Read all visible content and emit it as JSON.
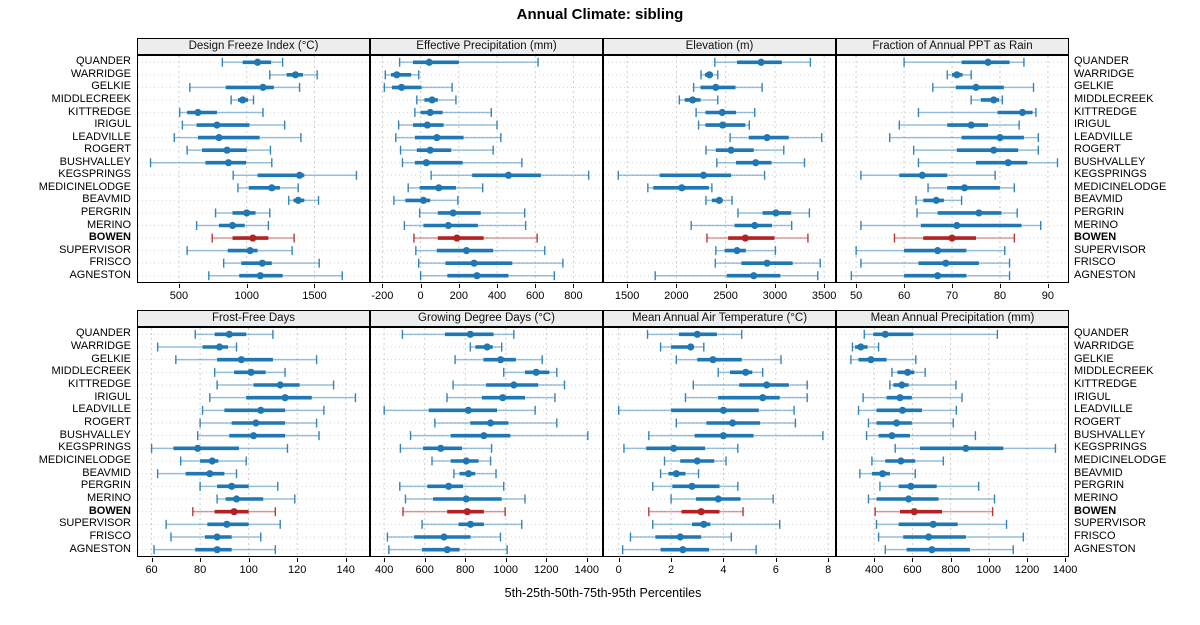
{
  "title": "Annual Climate: sibling",
  "caption": "5th-25th-50th-75th-95th Percentiles",
  "highlight_station": "BOWEN",
  "colors": {
    "series_blue": "#1f77b4",
    "highlight_red": "#b22222",
    "strip_bg": "#ededed",
    "panel_border": "#000000",
    "grid_line": "#cdcdcd",
    "row_guide": "#d6d6d6"
  },
  "stations": [
    "QUANDER",
    "WARRIDGE",
    "GELKIE",
    "MIDDLECREEK",
    "KITTREDGE",
    "IRIGUL",
    "LEADVILLE",
    "ROGERT",
    "BUSHVALLEY",
    "KEGSPRINGS",
    "MEDICINELODGE",
    "BEAVMID",
    "PERGRIN",
    "MERINO",
    "BOWEN",
    "SUPERVISOR",
    "FRISCO",
    "AGNESTON"
  ],
  "chart_data": {
    "type": "dot-whisker-trellis",
    "percentiles": [
      5,
      25,
      50,
      75,
      95
    ],
    "layout": {
      "rows": 2,
      "cols": 4,
      "grid": "dotted",
      "highlight": "BOWEN shown in red and bold"
    },
    "panels": [
      {
        "title": "Design Freeze Index (°C)",
        "ticks": [
          500,
          1000,
          1500
        ],
        "xlim": [
          190,
          1910
        ],
        "values": [
          [
            820,
            970,
            1080,
            1180,
            1265
          ],
          [
            1170,
            1295,
            1360,
            1415,
            1520
          ],
          [
            580,
            845,
            1120,
            1200,
            1390
          ],
          [
            885,
            935,
            970,
            1010,
            1050
          ],
          [
            505,
            560,
            640,
            780,
            1120
          ],
          [
            525,
            630,
            780,
            1020,
            1280
          ],
          [
            465,
            640,
            795,
            1095,
            1400
          ],
          [
            560,
            670,
            855,
            1000,
            1175
          ],
          [
            290,
            695,
            865,
            995,
            1185
          ],
          [
            900,
            1080,
            1390,
            1425,
            1810
          ],
          [
            935,
            1015,
            1185,
            1245,
            1380
          ],
          [
            1310,
            1345,
            1380,
            1425,
            1530
          ],
          [
            770,
            895,
            1000,
            1065,
            1170
          ],
          [
            630,
            795,
            895,
            985,
            1160
          ],
          [
            745,
            895,
            1045,
            1160,
            1350
          ],
          [
            560,
            860,
            1025,
            1080,
            1335
          ],
          [
            830,
            960,
            1115,
            1185,
            1535
          ],
          [
            720,
            945,
            1100,
            1265,
            1705
          ]
        ]
      },
      {
        "title": "Effective Precipitation (mm)",
        "ticks": [
          -200,
          0,
          200,
          400,
          600,
          800
        ],
        "xlim": [
          -265,
          955
        ],
        "values": [
          [
            -110,
            -40,
            45,
            200,
            615
          ],
          [
            -185,
            -155,
            -125,
            -50,
            -10
          ],
          [
            -190,
            -150,
            -100,
            5,
            165
          ],
          [
            -20,
            20,
            60,
            90,
            185
          ],
          [
            -30,
            0,
            50,
            115,
            370
          ],
          [
            -115,
            -40,
            35,
            120,
            400
          ],
          [
            -130,
            -30,
            85,
            225,
            420
          ],
          [
            -105,
            -20,
            50,
            160,
            380
          ],
          [
            -95,
            -30,
            30,
            220,
            530
          ],
          [
            55,
            270,
            460,
            630,
            880
          ],
          [
            -65,
            -5,
            95,
            185,
            325
          ],
          [
            -140,
            -80,
            15,
            50,
            195
          ],
          [
            -5,
            90,
            170,
            315,
            545
          ],
          [
            -85,
            15,
            145,
            300,
            550
          ],
          [
            -35,
            90,
            190,
            330,
            610
          ],
          [
            -25,
            85,
            240,
            380,
            650
          ],
          [
            -10,
            130,
            280,
            480,
            745
          ],
          [
            0,
            140,
            295,
            460,
            700
          ]
        ]
      },
      {
        "title": "Elevation (m)",
        "ticks": [
          1500,
          2000,
          2500,
          3000,
          3500
        ],
        "xlim": [
          1255,
          3620
        ],
        "values": [
          [
            2390,
            2615,
            2860,
            3070,
            3360
          ],
          [
            2250,
            2290,
            2335,
            2370,
            2420
          ],
          [
            2175,
            2245,
            2400,
            2600,
            2870
          ],
          [
            2030,
            2085,
            2165,
            2245,
            2420
          ],
          [
            2200,
            2295,
            2465,
            2605,
            2795
          ],
          [
            2225,
            2295,
            2470,
            2700,
            2740
          ],
          [
            2545,
            2735,
            2920,
            3140,
            3475
          ],
          [
            2300,
            2400,
            2555,
            2785,
            3090
          ],
          [
            2410,
            2605,
            2805,
            2965,
            3300
          ],
          [
            1410,
            1830,
            2275,
            2555,
            2895
          ],
          [
            1710,
            1765,
            2055,
            2330,
            2360
          ],
          [
            2300,
            2360,
            2435,
            2470,
            2565
          ],
          [
            2625,
            2875,
            3010,
            3165,
            3350
          ],
          [
            2150,
            2590,
            2795,
            2970,
            3170
          ],
          [
            2310,
            2525,
            2700,
            2995,
            3335
          ],
          [
            2400,
            2490,
            2615,
            2705,
            3005
          ],
          [
            2395,
            2660,
            2920,
            3180,
            3460
          ],
          [
            1785,
            2510,
            2785,
            3055,
            3435
          ]
        ]
      },
      {
        "title": "Fraction of Annual PPT as Rain",
        "ticks": [
          50,
          60,
          70,
          80,
          90
        ],
        "xlim": [
          45.8,
          94.4
        ],
        "values": [
          [
            60,
            72,
            77.5,
            82,
            85
          ],
          [
            69,
            70,
            71,
            72.2,
            74
          ],
          [
            66,
            70.8,
            75,
            80.8,
            87
          ],
          [
            74,
            76,
            78.7,
            79.8,
            80.5
          ],
          [
            63,
            79.5,
            84.7,
            86.8,
            87.5
          ],
          [
            59,
            69,
            74,
            77.5,
            84
          ],
          [
            57,
            72,
            80,
            85,
            88
          ],
          [
            62,
            71,
            78.7,
            83.8,
            88
          ],
          [
            63,
            75,
            81.7,
            85.7,
            92
          ],
          [
            51,
            59,
            63.8,
            69,
            79
          ],
          [
            65,
            69,
            72.6,
            80,
            83
          ],
          [
            62.5,
            64,
            66.7,
            68.3,
            72
          ],
          [
            62.7,
            67,
            75.6,
            80.3,
            83.6
          ],
          [
            51,
            63.5,
            71,
            84.5,
            88.5
          ],
          [
            58,
            64,
            70,
            75,
            83
          ],
          [
            50,
            60,
            67,
            73,
            81
          ],
          [
            51,
            63,
            68.7,
            75.6,
            82
          ],
          [
            49,
            60,
            67,
            73,
            82
          ]
        ]
      },
      {
        "title": "Frost-Free Days",
        "ticks": [
          60,
          80,
          100,
          120,
          140
        ],
        "xlim": [
          54,
          150
        ],
        "values": [
          [
            78,
            86,
            92,
            99,
            110
          ],
          [
            62.5,
            81,
            88,
            91.5,
            95
          ],
          [
            70,
            87,
            97,
            110,
            128
          ],
          [
            86,
            94,
            101,
            107,
            115
          ],
          [
            87,
            102,
            113,
            121,
            135
          ],
          [
            84,
            99,
            115,
            126,
            144
          ],
          [
            81,
            90,
            105,
            115,
            131
          ],
          [
            80,
            93,
            103,
            115,
            128
          ],
          [
            79,
            92,
            102,
            115,
            129
          ],
          [
            60,
            69,
            79,
            96,
            116
          ],
          [
            72,
            80,
            85,
            87.5,
            99
          ],
          [
            62.5,
            74,
            84,
            90,
            95
          ],
          [
            80,
            87,
            93,
            100,
            112
          ],
          [
            87,
            90.5,
            95,
            106,
            119
          ],
          [
            77,
            86,
            94,
            100,
            111
          ],
          [
            66,
            83,
            91,
            100,
            113
          ],
          [
            68,
            82,
            87,
            93,
            105
          ],
          [
            61,
            78,
            87,
            93,
            111
          ]
        ]
      },
      {
        "title": "Growing Degree Days (°C)",
        "ticks": [
          400,
          600,
          800,
          1000,
          1200,
          1400
        ],
        "xlim": [
          330,
          1480
        ],
        "values": [
          [
            490,
            700,
            825,
            940,
            1040
          ],
          [
            825,
            850,
            908,
            936,
            980
          ],
          [
            750,
            890,
            975,
            1050,
            1180
          ],
          [
            990,
            1095,
            1150,
            1215,
            1252
          ],
          [
            740,
            903,
            1040,
            1160,
            1290
          ],
          [
            710,
            882,
            985,
            1095,
            1243
          ],
          [
            400,
            620,
            815,
            957,
            1145
          ],
          [
            650,
            825,
            925,
            1013,
            1252
          ],
          [
            530,
            728,
            892,
            1023,
            1405
          ],
          [
            480,
            592,
            679,
            784,
            930
          ],
          [
            636,
            728,
            805,
            866,
            925
          ],
          [
            744,
            772,
            816,
            849,
            952
          ],
          [
            477,
            613,
            718,
            789,
            990
          ],
          [
            505,
            641,
            805,
            980,
            1095
          ],
          [
            493,
            711,
            810,
            892,
            997
          ],
          [
            587,
            767,
            826,
            892,
            1079
          ],
          [
            416,
            548,
            695,
            826,
            974
          ],
          [
            423,
            587,
            711,
            772,
            1007
          ]
        ]
      },
      {
        "title": "Mean Annual Air Temperature (°C)",
        "ticks": [
          0,
          2,
          4,
          6,
          8
        ],
        "xlim": [
          -0.6,
          8.3
        ],
        "values": [
          [
            1.1,
            2.3,
            3.0,
            3.75,
            4.7
          ],
          [
            1.6,
            2.0,
            2.75,
            2.85,
            3.25
          ],
          [
            2.2,
            3.0,
            3.6,
            4.7,
            6.2
          ],
          [
            3.8,
            4.25,
            4.85,
            5.1,
            5.5
          ],
          [
            2.85,
            4.6,
            5.65,
            6.5,
            7.2
          ],
          [
            2.55,
            3.8,
            5.5,
            6.15,
            7.2
          ],
          [
            0.0,
            2.0,
            4.0,
            5.35,
            6.7
          ],
          [
            2.2,
            3.35,
            4.35,
            5.4,
            6.75
          ],
          [
            1.15,
            2.9,
            4.0,
            5.15,
            7.8
          ],
          [
            0.2,
            1.05,
            2.1,
            3.3,
            4.55
          ],
          [
            1.75,
            2.35,
            3.0,
            3.65,
            4.1
          ],
          [
            1.6,
            1.9,
            2.2,
            2.55,
            3.05
          ],
          [
            1.3,
            2.05,
            2.8,
            3.85,
            4.55
          ],
          [
            2.0,
            2.95,
            3.8,
            4.65,
            5.9
          ],
          [
            1.15,
            2.4,
            3.15,
            3.85,
            4.75
          ],
          [
            1.3,
            2.8,
            3.25,
            3.5,
            6.15
          ],
          [
            0.45,
            1.4,
            2.35,
            3.15,
            4.3
          ],
          [
            0.15,
            1.6,
            2.45,
            3.45,
            5.25
          ]
        ]
      },
      {
        "title": "Mean Annual Precipitation (mm)",
        "ticks": [
          400,
          600,
          800,
          1000,
          1200,
          1400
        ],
        "xlim": [
          200,
          1420
        ],
        "values": [
          [
            348,
            395,
            458,
            605,
            1045
          ],
          [
            286,
            300,
            330,
            365,
            423
          ],
          [
            278,
            318,
            383,
            465,
            618
          ],
          [
            493,
            522,
            575,
            610,
            667
          ],
          [
            482,
            500,
            545,
            580,
            828
          ],
          [
            342,
            465,
            535,
            597,
            860
          ],
          [
            318,
            412,
            548,
            650,
            830
          ],
          [
            370,
            412,
            517,
            597,
            814
          ],
          [
            360,
            423,
            493,
            587,
            930
          ],
          [
            510,
            640,
            880,
            1076,
            1349
          ],
          [
            388,
            458,
            540,
            615,
            762
          ],
          [
            325,
            388,
            444,
            482,
            615
          ],
          [
            430,
            528,
            592,
            727,
            947
          ],
          [
            370,
            412,
            580,
            737,
            1030
          ],
          [
            405,
            535,
            610,
            755,
            1020
          ],
          [
            412,
            528,
            709,
            837,
            1093
          ],
          [
            423,
            552,
            685,
            880,
            1181
          ],
          [
            458,
            570,
            702,
            901,
            1128
          ]
        ]
      }
    ]
  }
}
